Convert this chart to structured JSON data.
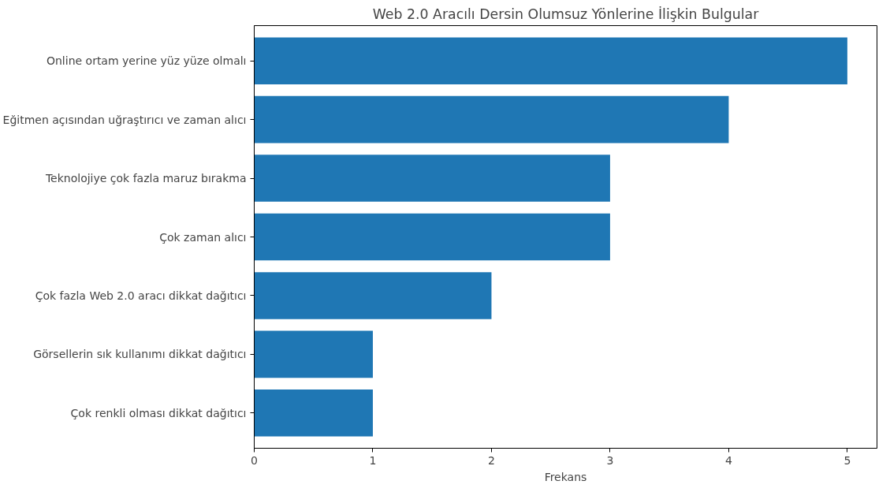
{
  "chart_data": {
    "type": "bar",
    "orientation": "horizontal",
    "title": "Web 2.0 Aracılı Dersin Olumsuz Yönlerine İlişkin Bulgular",
    "xlabel": "Frekans",
    "categories": [
      "Online ortam yerine yüz yüze olmalı",
      "Eğitmen açısından uğraştırıcı ve zaman alıcı",
      "Teknolojiye çok fazla maruz bırakma",
      "Çok zaman alıcı",
      "Çok fazla Web 2.0 aracı dikkat dağıtıcı",
      "Görsellerin sık kullanımı dikkat dağıtıcı",
      "Çok renkli olması dikkat dağıtıcı"
    ],
    "values": [
      5,
      4,
      3,
      3,
      2,
      1,
      1
    ],
    "color": "#1f77b4",
    "xlim": [
      0,
      5.25
    ],
    "xticks": [
      0,
      1,
      2,
      3,
      4,
      5
    ],
    "grid": false
  }
}
